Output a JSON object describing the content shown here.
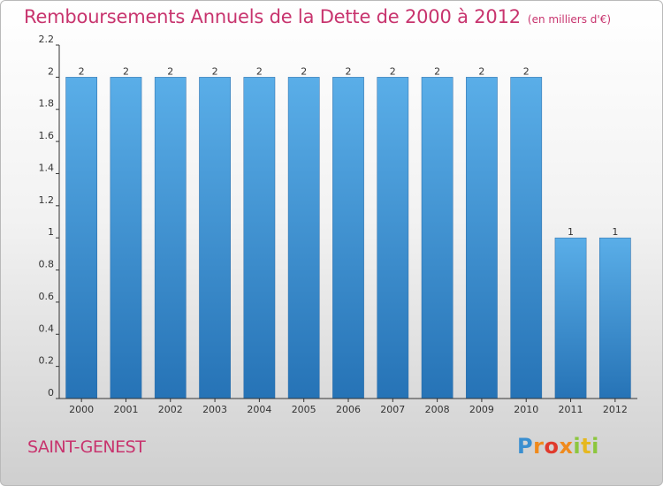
{
  "header": {
    "title": "Remboursements Annuels de la Dette de 2000 à 2012",
    "subtitle": "(en milliers d'€)"
  },
  "footer": {
    "place": "SAINT-GENEST",
    "logo": "Proxiti"
  },
  "colors": {
    "accent": "#c8346e",
    "bar_top": "#5aaee8",
    "bar_bottom": "#2673b6"
  },
  "chart_data": {
    "type": "bar",
    "title": "Remboursements Annuels de la Dette de 2000 à 2012",
    "subtitle": "(en milliers d'€)",
    "categories": [
      "2000",
      "2001",
      "2002",
      "2003",
      "2004",
      "2005",
      "2006",
      "2007",
      "2008",
      "2009",
      "2010",
      "2011",
      "2012"
    ],
    "values": [
      2,
      2,
      2,
      2,
      2,
      2,
      2,
      2,
      2,
      2,
      2,
      1,
      1
    ],
    "data_labels": [
      "2",
      "2",
      "2",
      "2",
      "2",
      "2",
      "2",
      "2",
      "2",
      "2",
      "2",
      "1",
      "1"
    ],
    "ylim": [
      0,
      2.2
    ],
    "yticks": [
      0,
      0.2,
      0.4,
      0.6,
      0.8,
      1,
      1.2,
      1.4,
      1.6,
      1.8,
      2,
      2.2
    ],
    "ytick_labels": [
      "0",
      "0.2",
      "0.4",
      "0.6",
      "0.8",
      "1",
      "1.2",
      "1.4",
      "1.6",
      "1.8",
      "2",
      "2.2"
    ],
    "xlabel": "",
    "ylabel": "",
    "grid": false,
    "legend": "none"
  }
}
